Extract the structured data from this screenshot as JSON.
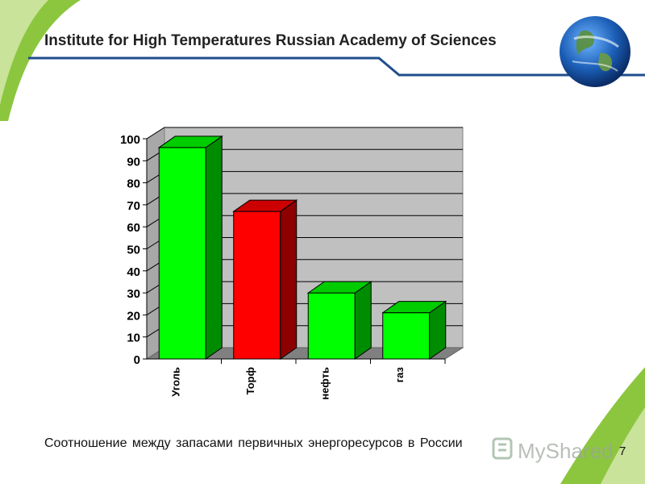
{
  "header": {
    "title": "Institute for High Temperatures Russian Academy of Sciences"
  },
  "footer": {
    "caption": "Соотношение между запасами первичных энергоресурсов в России",
    "page_number": "7",
    "watermark_text": "MyShared"
  },
  "colors": {
    "green_bar": "#00ff00",
    "red_bar": "#ff0000",
    "plot_wall": "#c0c0c0",
    "plot_floor": "#808080",
    "header_line": "#1f4e8c",
    "accent_green": "#7dc242"
  },
  "chart_data": {
    "type": "bar",
    "style": "3d-column",
    "categories": [
      "Уголь",
      "Торф",
      "нефть",
      "газ"
    ],
    "values": [
      96,
      67,
      30,
      21
    ],
    "bar_colors": [
      "#00ff00",
      "#ff0000",
      "#00ff00",
      "#00ff00"
    ],
    "ylim": [
      0,
      100
    ],
    "yticks": [
      "0",
      "10",
      "20",
      "30",
      "40",
      "50",
      "60",
      "70",
      "80",
      "90",
      "100"
    ],
    "grid": true,
    "legend": "none"
  }
}
